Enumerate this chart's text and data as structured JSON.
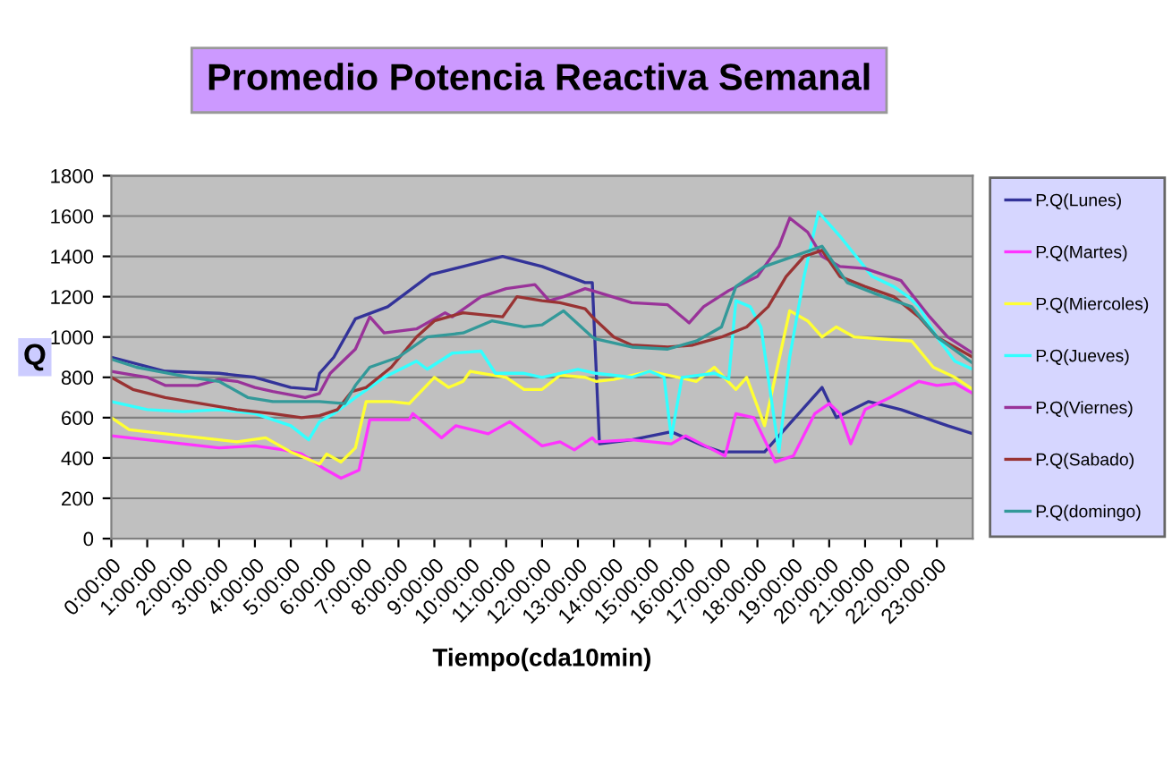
{
  "chart_data": {
    "type": "line",
    "title": "Promedio Potencia Reactiva Semanal",
    "xlabel": "Tiempo(cda10min)",
    "ylabel": "Q",
    "xlim": [
      0,
      24
    ],
    "xticks": [
      {
        "value": 0,
        "label": "0:00:00"
      },
      {
        "value": 1,
        "label": "1:00:00"
      },
      {
        "value": 2,
        "label": "2:00:00"
      },
      {
        "value": 3,
        "label": "3:00:00"
      },
      {
        "value": 4,
        "label": "4:00:00"
      },
      {
        "value": 5,
        "label": "5:00:00"
      },
      {
        "value": 6,
        "label": "6:00:00"
      },
      {
        "value": 7,
        "label": "7:00:00"
      },
      {
        "value": 8,
        "label": "8:00:00"
      },
      {
        "value": 9,
        "label": "9:00:00"
      },
      {
        "value": 10,
        "label": "10:00:00"
      },
      {
        "value": 11,
        "label": "11:00:00"
      },
      {
        "value": 12,
        "label": "12:00:00"
      },
      {
        "value": 13,
        "label": "13:00:00"
      },
      {
        "value": 14,
        "label": "14:00:00"
      },
      {
        "value": 15,
        "label": "15:00:00"
      },
      {
        "value": 16,
        "label": "16:00:00"
      },
      {
        "value": 17,
        "label": "17:00:00"
      },
      {
        "value": 18,
        "label": "18:00:00"
      },
      {
        "value": 19,
        "label": "19:00:00"
      },
      {
        "value": 20,
        "label": "20:00:00"
      },
      {
        "value": 21,
        "label": "21:00:00"
      },
      {
        "value": 22,
        "label": "22:00:00"
      },
      {
        "value": 23,
        "label": "23:00:00"
      }
    ],
    "ylim": [
      0,
      1800
    ],
    "yticks": [
      0,
      200,
      400,
      600,
      800,
      1000,
      1200,
      1400,
      1600,
      1800
    ],
    "grid": "y",
    "legend": "right",
    "marker": "none",
    "line_style": "solid",
    "series": [
      {
        "name": "P.Q(Lunes)",
        "color": "#333399",
        "x": [
          0,
          1.5,
          3,
          4,
          5,
          5.7,
          5.8,
          6.2,
          6.8,
          7.7,
          8.9,
          9.8,
          10.9,
          12,
          13.2,
          13.4,
          13.6,
          14.5,
          15.6,
          16.5,
          17.0,
          18.2,
          19.8,
          20.2,
          21.1,
          22,
          23.3,
          24
        ],
        "values": [
          900,
          830,
          820,
          800,
          750,
          740,
          820,
          900,
          1090,
          1150,
          1310,
          1350,
          1400,
          1350,
          1270,
          1270,
          470,
          490,
          530,
          460,
          430,
          430,
          750,
          600,
          680,
          640,
          560,
          520
        ]
      },
      {
        "name": "P.Q(Martes)",
        "color": "#ff33ff",
        "x": [
          0,
          1,
          2,
          3,
          4,
          4.8,
          5.3,
          5.9,
          6.4,
          6.9,
          7.2,
          8.3,
          8.4,
          9.2,
          9.6,
          10.5,
          11.1,
          12,
          12.5,
          12.9,
          13.4,
          13.5,
          14.5,
          15.6,
          16,
          17.1,
          17.4,
          17.9,
          18.5,
          19,
          19.6,
          20,
          20.3,
          20.6,
          21,
          21.7,
          22.5,
          23,
          23.5,
          24
        ],
        "values": [
          510,
          490,
          470,
          450,
          460,
          440,
          420,
          350,
          300,
          340,
          590,
          590,
          620,
          500,
          560,
          520,
          580,
          460,
          480,
          440,
          500,
          480,
          490,
          470,
          510,
          410,
          620,
          600,
          380,
          410,
          620,
          670,
          620,
          470,
          640,
          700,
          780,
          760,
          770,
          720
        ]
      },
      {
        "name": "P.Q(Miercoles)",
        "color": "#ffff33",
        "x": [
          0,
          0.5,
          1.5,
          2.5,
          3.5,
          4.3,
          5,
          5.8,
          6.0,
          6.4,
          6.8,
          7.1,
          7.8,
          8.3,
          9.0,
          9.4,
          9.8,
          10,
          11,
          11.5,
          12,
          12.5,
          13.2,
          13.5,
          14,
          15,
          15.8,
          16.3,
          16.8,
          17.4,
          17.7,
          18.2,
          18.9,
          19.4,
          19.8,
          20.2,
          20.7,
          21.5,
          22.3,
          22.9,
          23.5,
          24
        ],
        "values": [
          600,
          540,
          520,
          500,
          480,
          500,
          430,
          370,
          420,
          380,
          450,
          680,
          680,
          670,
          800,
          750,
          780,
          830,
          800,
          740,
          740,
          810,
          800,
          780,
          790,
          830,
          800,
          780,
          850,
          740,
          800,
          560,
          1130,
          1080,
          1000,
          1050,
          1000,
          990,
          980,
          850,
          800,
          740
        ]
      },
      {
        "name": "P.Q(Jueves)",
        "color": "#33ffff",
        "x": [
          0,
          1,
          2,
          3,
          4,
          4.5,
          5,
          5.5,
          5.8,
          6.2,
          6.8,
          7.6,
          8.5,
          8.8,
          9.5,
          10.3,
          10.7,
          11.5,
          12,
          13,
          13.5,
          14.5,
          15,
          15.4,
          15.6,
          15.9,
          16.8,
          17.2,
          17.4,
          17.8,
          18.1,
          18.6,
          18.9,
          19.3,
          19.7,
          20.3,
          21.2,
          21.8,
          22.2,
          22.5,
          23,
          23.5,
          24
        ],
        "values": [
          680,
          640,
          630,
          640,
          620,
          590,
          560,
          490,
          580,
          620,
          700,
          800,
          880,
          840,
          920,
          930,
          820,
          820,
          800,
          840,
          820,
          800,
          830,
          800,
          500,
          800,
          820,
          790,
          1180,
          1150,
          1050,
          430,
          900,
          1300,
          1620,
          1500,
          1300,
          1250,
          1200,
          1150,
          1000,
          880,
          840
        ]
      },
      {
        "name": "P.Q(Viernes)",
        "color": "#993399",
        "x": [
          0,
          1,
          1.5,
          2.4,
          3,
          3.5,
          4,
          4.5,
          5.4,
          5.8,
          6.1,
          6.8,
          7.2,
          7.6,
          8.5,
          9.3,
          9.5,
          10.3,
          11,
          11.8,
          12.2,
          12.6,
          13.2,
          13.4,
          14.5,
          15.5,
          16.1,
          16.5,
          17.2,
          18,
          18.6,
          18.9,
          19.4,
          19.8,
          20.3,
          21,
          22,
          22.8,
          23.3,
          24
        ],
        "values": [
          830,
          800,
          760,
          760,
          790,
          780,
          750,
          730,
          700,
          720,
          820,
          940,
          1100,
          1020,
          1040,
          1120,
          1100,
          1200,
          1240,
          1260,
          1180,
          1200,
          1240,
          1230,
          1170,
          1160,
          1070,
          1150,
          1230,
          1300,
          1450,
          1590,
          1520,
          1400,
          1350,
          1340,
          1280,
          1100,
          1000,
          920
        ]
      },
      {
        "name": "P.Q(Sabado)",
        "color": "#993333",
        "x": [
          0,
          0.6,
          1.5,
          2.5,
          3.5,
          4.5,
          5.3,
          5.8,
          6.3,
          6.7,
          7.1,
          7.8,
          8.5,
          9,
          9.8,
          10.9,
          11.3,
          12,
          12.5,
          13.2,
          13.4,
          14,
          14.5,
          15.5,
          16.2,
          17,
          17.7,
          18.3,
          18.8,
          19.3,
          19.8,
          20.3,
          21,
          21.8,
          22.5,
          23,
          24
        ],
        "values": [
          800,
          740,
          700,
          670,
          640,
          620,
          600,
          610,
          640,
          730,
          750,
          850,
          1000,
          1080,
          1120,
          1100,
          1200,
          1180,
          1170,
          1140,
          1100,
          1000,
          960,
          950,
          960,
          1000,
          1050,
          1150,
          1300,
          1400,
          1430,
          1300,
          1250,
          1200,
          1100,
          1000,
          900
        ]
      },
      {
        "name": "P.Q(domingo)",
        "color": "#339999",
        "x": [
          0,
          0.7,
          1.3,
          2.2,
          3,
          3.8,
          4.5,
          5.8,
          6.5,
          6.8,
          7.2,
          8,
          8.8,
          9.8,
          10.6,
          11.5,
          12,
          12.6,
          13.4,
          13.5,
          14.5,
          15.5,
          16.3,
          17,
          17.4,
          18.2,
          19,
          19.8,
          20.5,
          21.5,
          22.3,
          23,
          24
        ],
        "values": [
          890,
          850,
          830,
          800,
          780,
          700,
          680,
          680,
          670,
          760,
          850,
          900,
          1000,
          1020,
          1080,
          1050,
          1060,
          1130,
          1000,
          990,
          950,
          940,
          980,
          1050,
          1250,
          1350,
          1400,
          1450,
          1270,
          1200,
          1150,
          1000,
          870
        ]
      }
    ]
  }
}
